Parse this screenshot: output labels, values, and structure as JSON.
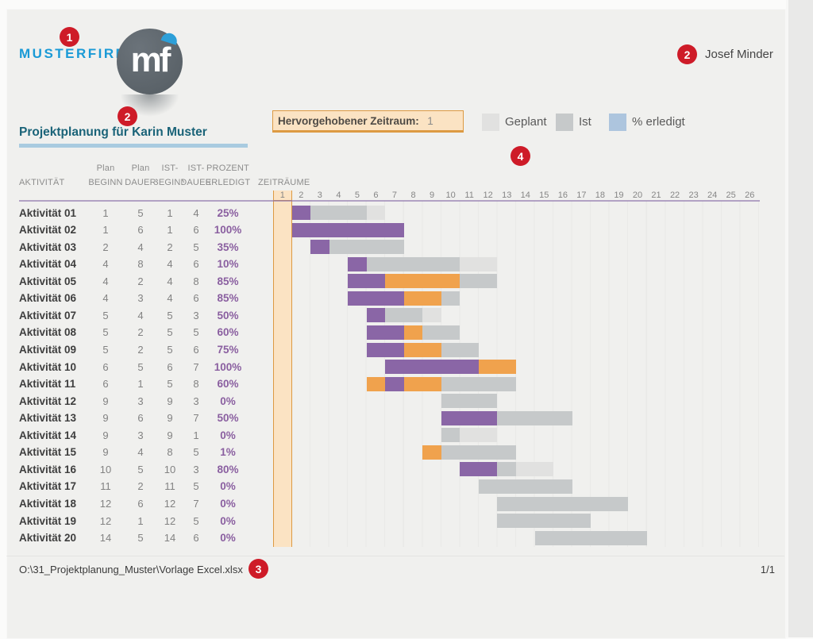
{
  "page": {
    "company": "MUSTERFIRMA",
    "logo_monogram": "mf",
    "author": "Josef Minder",
    "title": "Projektplanung für Karin Muster",
    "footer": {
      "path": "O:\\31_Projektplanung_Muster\\Vorlage Excel.xlsx",
      "page_indicator": "1/1"
    }
  },
  "annotations": {
    "b1": "1",
    "b2_logo": "2",
    "b2_author": "2",
    "b3": "3",
    "b4": "4"
  },
  "highlight_box": {
    "label": "Hervorgehobener Zeitraum:",
    "value": "1"
  },
  "legend": [
    {
      "label": "Geplant",
      "color": "#e1e1e0"
    },
    {
      "label": "Ist",
      "color": "#c6c9ca"
    },
    {
      "label": "% erledigt",
      "color": "#adc5de"
    }
  ],
  "table": {
    "headers": {
      "aktivitaet": "AKTIVITÄT",
      "plan1": "Plan",
      "beginn": "BEGINN",
      "plan2": "Plan",
      "dauer": "DAUER",
      "ist1": "IST-",
      "ist_beginn": "BEGINN",
      "ist2": "IST-",
      "ist_dauer": "DAUER",
      "prozent": "PROZENT",
      "erledigt": "ERLEDIGT",
      "zeitraeume": "ZEITRÄUME"
    }
  },
  "theme": {
    "accent_red": "#ce1b28",
    "brand_blue": "#1a9ad6",
    "title_teal": "#1a6378",
    "underline_blue": "#a9cbe0",
    "highlight_fill": "#fbe3c3",
    "highlight_border": "#dd9a42",
    "pct_purple": "#8a5fa0",
    "text_dark": "#3e3e3e",
    "text_gray": "#828282"
  },
  "chart_data": {
    "type": "gantt",
    "title": "Projektplanung für Karin Muster",
    "xlabel": "Zeiträume",
    "periods": [
      1,
      2,
      3,
      4,
      5,
      6,
      7,
      8,
      9,
      10,
      11,
      12,
      13,
      14,
      15,
      16,
      17,
      18,
      19,
      20,
      21,
      22,
      23,
      24,
      25,
      26
    ],
    "highlighted_period": 1,
    "legend_position": "top-right",
    "colors": {
      "done": "#8a66a6",
      "over": "#f0a24d",
      "ist": "#c6c9ca",
      "plan": "#e1e1e0"
    },
    "color_meaning": {
      "plan": "Geplant",
      "ist": "Ist",
      "done": "% erledigt (im Plan)",
      "over": "% erledigt (außerhalb Plan)"
    },
    "rows": [
      {
        "label": "Aktivität 01",
        "plan_beginn": 1,
        "plan_dauer": 5,
        "ist_beginn": 1,
        "ist_dauer": 4,
        "prozent": "25%",
        "segments": [
          {
            "c": "done",
            "s": 2,
            "e": 2
          },
          {
            "c": "ist",
            "s": 3,
            "e": 5
          },
          {
            "c": "plan",
            "s": 6,
            "e": 6
          }
        ]
      },
      {
        "label": "Aktivität 02",
        "plan_beginn": 1,
        "plan_dauer": 6,
        "ist_beginn": 1,
        "ist_dauer": 6,
        "prozent": "100%",
        "segments": [
          {
            "c": "done",
            "s": 2,
            "e": 7
          }
        ]
      },
      {
        "label": "Aktivität 03",
        "plan_beginn": 2,
        "plan_dauer": 4,
        "ist_beginn": 2,
        "ist_dauer": 5,
        "prozent": "35%",
        "segments": [
          {
            "c": "done",
            "s": 3,
            "e": 3
          },
          {
            "c": "ist",
            "s": 4,
            "e": 7
          }
        ]
      },
      {
        "label": "Aktivität 04",
        "plan_beginn": 4,
        "plan_dauer": 8,
        "ist_beginn": 4,
        "ist_dauer": 6,
        "prozent": "10%",
        "segments": [
          {
            "c": "done",
            "s": 5,
            "e": 5
          },
          {
            "c": "ist",
            "s": 6,
            "e": 10
          },
          {
            "c": "plan",
            "s": 11,
            "e": 12
          }
        ]
      },
      {
        "label": "Aktivität 05",
        "plan_beginn": 4,
        "plan_dauer": 2,
        "ist_beginn": 4,
        "ist_dauer": 8,
        "prozent": "85%",
        "segments": [
          {
            "c": "done",
            "s": 5,
            "e": 6
          },
          {
            "c": "over",
            "s": 7,
            "e": 10
          },
          {
            "c": "ist",
            "s": 11,
            "e": 12
          }
        ]
      },
      {
        "label": "Aktivität 06",
        "plan_beginn": 4,
        "plan_dauer": 3,
        "ist_beginn": 4,
        "ist_dauer": 6,
        "prozent": "85%",
        "segments": [
          {
            "c": "done",
            "s": 5,
            "e": 7
          },
          {
            "c": "over",
            "s": 8,
            "e": 9
          },
          {
            "c": "ist",
            "s": 10,
            "e": 10
          }
        ]
      },
      {
        "label": "Aktivität 07",
        "plan_beginn": 5,
        "plan_dauer": 4,
        "ist_beginn": 5,
        "ist_dauer": 3,
        "prozent": "50%",
        "segments": [
          {
            "c": "done",
            "s": 6,
            "e": 6
          },
          {
            "c": "ist",
            "s": 7,
            "e": 8
          },
          {
            "c": "plan",
            "s": 9,
            "e": 9
          }
        ]
      },
      {
        "label": "Aktivität 08",
        "plan_beginn": 5,
        "plan_dauer": 2,
        "ist_beginn": 5,
        "ist_dauer": 5,
        "prozent": "60%",
        "segments": [
          {
            "c": "done",
            "s": 6,
            "e": 7
          },
          {
            "c": "over",
            "s": 8,
            "e": 8
          },
          {
            "c": "ist",
            "s": 9,
            "e": 10
          }
        ]
      },
      {
        "label": "Aktivität 09",
        "plan_beginn": 5,
        "plan_dauer": 2,
        "ist_beginn": 5,
        "ist_dauer": 6,
        "prozent": "75%",
        "segments": [
          {
            "c": "done",
            "s": 6,
            "e": 7
          },
          {
            "c": "over",
            "s": 8,
            "e": 9
          },
          {
            "c": "ist",
            "s": 10,
            "e": 11
          }
        ]
      },
      {
        "label": "Aktivität 10",
        "plan_beginn": 6,
        "plan_dauer": 5,
        "ist_beginn": 6,
        "ist_dauer": 7,
        "prozent": "100%",
        "segments": [
          {
            "c": "done",
            "s": 7,
            "e": 11
          },
          {
            "c": "over",
            "s": 12,
            "e": 13
          }
        ]
      },
      {
        "label": "Aktivität 11",
        "plan_beginn": 6,
        "plan_dauer": 1,
        "ist_beginn": 5,
        "ist_dauer": 8,
        "prozent": "60%",
        "segments": [
          {
            "c": "over",
            "s": 6,
            "e": 6
          },
          {
            "c": "done",
            "s": 7,
            "e": 7
          },
          {
            "c": "over",
            "s": 8,
            "e": 9
          },
          {
            "c": "ist",
            "s": 10,
            "e": 13
          }
        ]
      },
      {
        "label": "Aktivität 12",
        "plan_beginn": 9,
        "plan_dauer": 3,
        "ist_beginn": 9,
        "ist_dauer": 3,
        "prozent": "0%",
        "segments": [
          {
            "c": "ist",
            "s": 10,
            "e": 12
          }
        ]
      },
      {
        "label": "Aktivität 13",
        "plan_beginn": 9,
        "plan_dauer": 6,
        "ist_beginn": 9,
        "ist_dauer": 7,
        "prozent": "50%",
        "segments": [
          {
            "c": "done",
            "s": 10,
            "e": 12
          },
          {
            "c": "ist",
            "s": 13,
            "e": 16
          }
        ]
      },
      {
        "label": "Aktivität 14",
        "plan_beginn": 9,
        "plan_dauer": 3,
        "ist_beginn": 9,
        "ist_dauer": 1,
        "prozent": "0%",
        "segments": [
          {
            "c": "ist",
            "s": 10,
            "e": 10
          },
          {
            "c": "plan",
            "s": 11,
            "e": 12
          }
        ]
      },
      {
        "label": "Aktivität 15",
        "plan_beginn": 9,
        "plan_dauer": 4,
        "ist_beginn": 8,
        "ist_dauer": 5,
        "prozent": "1%",
        "segments": [
          {
            "c": "over",
            "s": 9,
            "e": 9
          },
          {
            "c": "ist",
            "s": 10,
            "e": 13
          }
        ]
      },
      {
        "label": "Aktivität 16",
        "plan_beginn": 10,
        "plan_dauer": 5,
        "ist_beginn": 10,
        "ist_dauer": 3,
        "prozent": "80%",
        "segments": [
          {
            "c": "done",
            "s": 11,
            "e": 12
          },
          {
            "c": "ist",
            "s": 13,
            "e": 13
          },
          {
            "c": "plan",
            "s": 14,
            "e": 15
          }
        ]
      },
      {
        "label": "Aktivität 17",
        "plan_beginn": 11,
        "plan_dauer": 2,
        "ist_beginn": 11,
        "ist_dauer": 5,
        "prozent": "0%",
        "segments": [
          {
            "c": "ist",
            "s": 12,
            "e": 16
          }
        ]
      },
      {
        "label": "Aktivität 18",
        "plan_beginn": 12,
        "plan_dauer": 6,
        "ist_beginn": 12,
        "ist_dauer": 7,
        "prozent": "0%",
        "segments": [
          {
            "c": "ist",
            "s": 13,
            "e": 19
          }
        ]
      },
      {
        "label": "Aktivität 19",
        "plan_beginn": 12,
        "plan_dauer": 1,
        "ist_beginn": 12,
        "ist_dauer": 5,
        "prozent": "0%",
        "segments": [
          {
            "c": "ist",
            "s": 13,
            "e": 17
          }
        ]
      },
      {
        "label": "Aktivität 20",
        "plan_beginn": 14,
        "plan_dauer": 5,
        "ist_beginn": 14,
        "ist_dauer": 6,
        "prozent": "0%",
        "segments": [
          {
            "c": "ist",
            "s": 15,
            "e": 20
          }
        ]
      }
    ]
  }
}
